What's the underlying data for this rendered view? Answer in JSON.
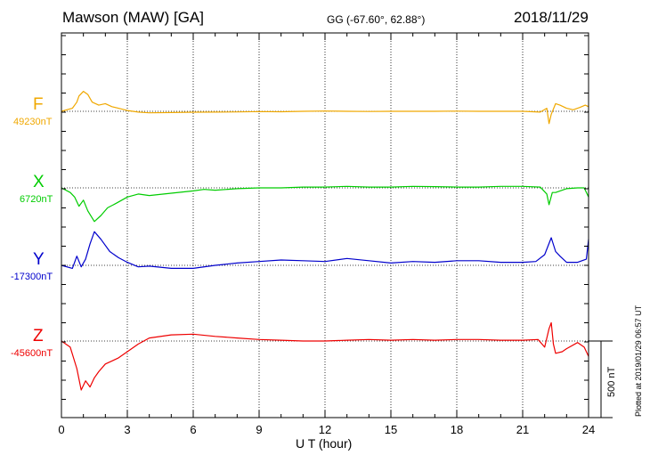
{
  "header": {
    "station": "Mawson (MAW)  [GA]",
    "coords": "GG (-67.60°,  62.88°)",
    "date": "2018/11/29"
  },
  "plotted_note": "Plotted at 2019/01/29 06:57 UT",
  "scale_text": "500 nT",
  "chart_data": {
    "type": "line",
    "xlabel": "U T (hour)",
    "xlim": [
      0,
      24
    ],
    "xticks": [
      "0",
      "3",
      "6",
      "9",
      "12",
      "15",
      "18",
      "21",
      "24"
    ],
    "grid": "dotted vertical every 3 h, dotted baseline per trace",
    "scale_bar_nT": 500,
    "series": [
      {
        "name": "F",
        "base_label": "49230nT",
        "color": "#f0a800",
        "x": [
          0,
          0.5,
          0.7,
          0.8,
          1.0,
          1.2,
          1.4,
          1.7,
          2.0,
          2.3,
          2.6,
          3.0,
          3.5,
          4.0,
          5.0,
          6.0,
          7.0,
          8.0,
          9.0,
          10.0,
          11.0,
          12.0,
          13.0,
          14.0,
          15.0,
          16.0,
          17.0,
          18.0,
          19.0,
          20.0,
          21.0,
          21.8,
          22.1,
          22.2,
          22.3,
          22.5,
          22.7,
          23.0,
          23.3,
          23.6,
          23.85,
          24.0
        ],
        "y": [
          0,
          20,
          60,
          100,
          130,
          110,
          60,
          40,
          50,
          30,
          20,
          5,
          -5,
          -10,
          -8,
          -6,
          -5,
          -4,
          -2,
          -3,
          0,
          2,
          0,
          -1,
          0,
          0,
          0,
          1,
          0,
          0,
          0,
          -5,
          20,
          -80,
          -20,
          50,
          40,
          20,
          10,
          25,
          40,
          30
        ]
      },
      {
        "name": "X",
        "base_label": "6720nT",
        "color": "#00cc00",
        "x": [
          0,
          0.4,
          0.6,
          0.8,
          1.0,
          1.2,
          1.5,
          1.8,
          2.1,
          2.5,
          3.0,
          3.5,
          4.0,
          5.0,
          6.0,
          6.5,
          7.0,
          8.0,
          9.0,
          10.0,
          11.0,
          12.0,
          13.0,
          14.0,
          15.0,
          16.0,
          17.0,
          18.0,
          19.0,
          20.0,
          21.0,
          21.8,
          22.1,
          22.2,
          22.35,
          22.5,
          23.0,
          23.5,
          23.8,
          24.0
        ],
        "y": [
          0,
          -30,
          -60,
          -120,
          -80,
          -150,
          -220,
          -180,
          -130,
          -100,
          -60,
          -40,
          -50,
          -35,
          -20,
          -10,
          -15,
          -5,
          0,
          0,
          5,
          5,
          10,
          5,
          5,
          10,
          8,
          5,
          5,
          10,
          10,
          5,
          -40,
          -110,
          -30,
          -30,
          -5,
          0,
          0,
          -60
        ]
      },
      {
        "name": "Y",
        "base_label": "-17300nT",
        "color": "#0000cc",
        "x": [
          0,
          0.5,
          0.7,
          0.9,
          1.1,
          1.3,
          1.5,
          1.8,
          2.2,
          2.6,
          3.0,
          3.5,
          4.0,
          5.0,
          6.0,
          7.0,
          8.0,
          9.0,
          10.0,
          11.0,
          12.0,
          13.0,
          14.0,
          15.0,
          16.0,
          17.0,
          18.0,
          19.0,
          20.0,
          21.0,
          21.6,
          22.0,
          22.3,
          22.5,
          22.7,
          23.0,
          23.5,
          23.9,
          24.0
        ],
        "y": [
          0,
          -20,
          60,
          -10,
          40,
          140,
          220,
          170,
          90,
          50,
          20,
          -10,
          -5,
          -20,
          -20,
          0,
          15,
          25,
          35,
          30,
          25,
          45,
          30,
          15,
          25,
          20,
          30,
          30,
          20,
          20,
          25,
          70,
          180,
          90,
          60,
          20,
          20,
          40,
          170
        ]
      },
      {
        "name": "Z",
        "base_label": "-45600nT",
        "color": "#ee0000",
        "x": [
          0,
          0.4,
          0.7,
          0.9,
          1.1,
          1.3,
          1.5,
          1.7,
          2.0,
          2.3,
          2.6,
          3.0,
          3.5,
          4.0,
          5.0,
          6.0,
          7.0,
          8.0,
          9.0,
          10.0,
          11.0,
          12.0,
          13.0,
          14.0,
          15.0,
          16.0,
          17.0,
          18.0,
          19.0,
          20.0,
          21.0,
          21.7,
          22.0,
          22.2,
          22.3,
          22.4,
          22.5,
          22.8,
          23.0,
          23.5,
          23.8,
          24.0
        ],
        "y": [
          0,
          -40,
          -180,
          -320,
          -260,
          -300,
          -240,
          -200,
          -150,
          -130,
          -110,
          -70,
          -20,
          20,
          40,
          45,
          30,
          20,
          10,
          5,
          0,
          0,
          5,
          10,
          5,
          10,
          5,
          10,
          10,
          5,
          5,
          10,
          -40,
          80,
          120,
          -20,
          -80,
          -70,
          -50,
          -10,
          -40,
          -100
        ]
      }
    ]
  }
}
